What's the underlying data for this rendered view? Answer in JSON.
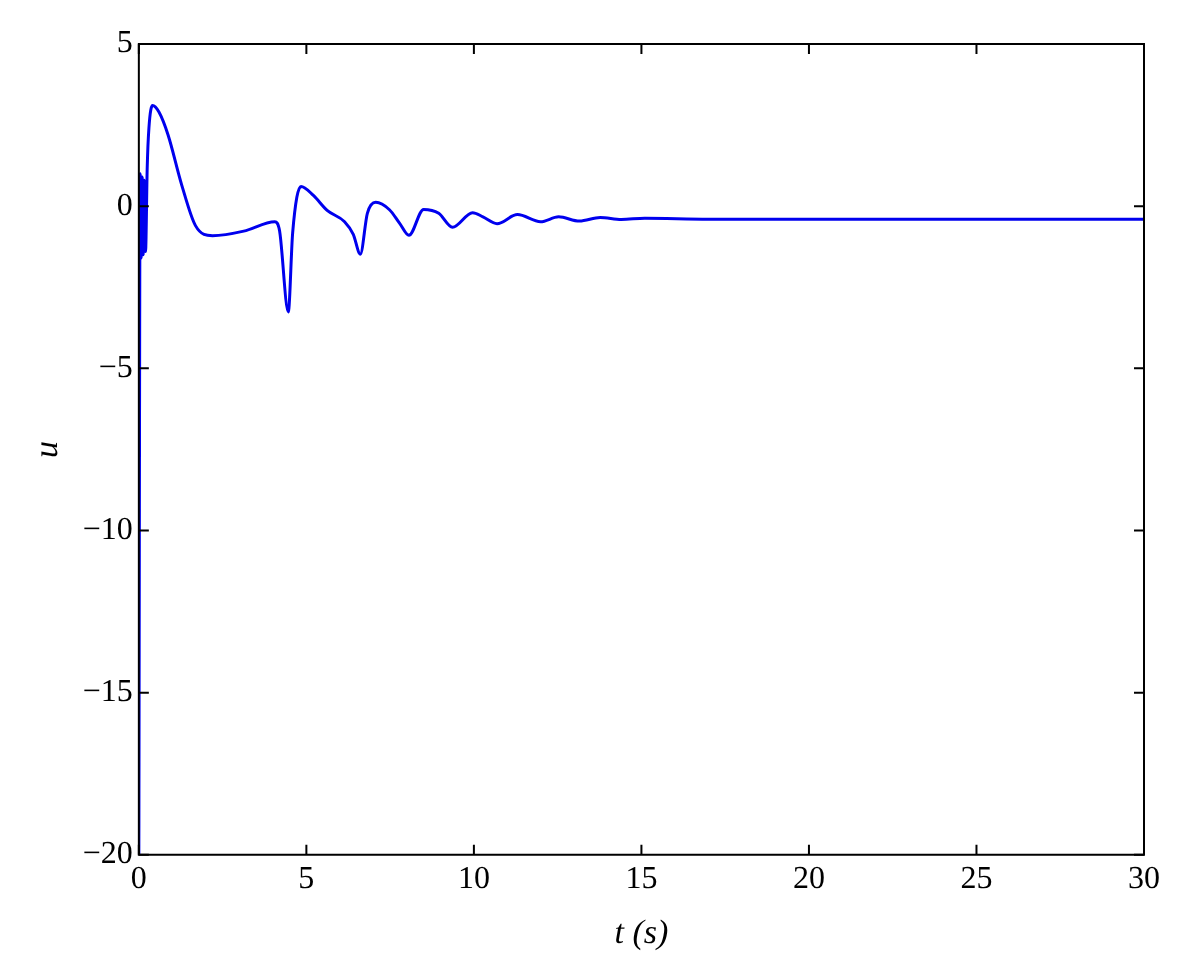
{
  "chart_data": {
    "type": "line",
    "xlabel": "t (s)",
    "ylabel": "u",
    "x": [
      0,
      0.04,
      0.07,
      0.1,
      0.13,
      0.16,
      0.2,
      0.25,
      0.3,
      0.41,
      0.6,
      0.87,
      1.28,
      1.69,
      2.2,
      3.13,
      4.06,
      4.2,
      4.46,
      4.59,
      4.84,
      5.21,
      5.62,
      6.14,
      6.4,
      6.61,
      6.82,
      7.07,
      7.48,
      7.79,
      8.06,
      8.5,
      8.95,
      9.36,
      9.96,
      10.27,
      10.69,
      11.3,
      11.99,
      12.53,
      13.15,
      13.77,
      14.4,
      15.1,
      17,
      20,
      25,
      30
    ],
    "series": [
      {
        "color": "#0000ee",
        "values": [
          -20,
          1,
          -1.6,
          0.9,
          -1.5,
          0.8,
          -1.4,
          1.2,
          2.4,
          3.1,
          2.9,
          2.2,
          0.65,
          -0.6,
          -0.91,
          -0.77,
          -0.48,
          -0.76,
          -3.26,
          -0.83,
          0.61,
          0.33,
          -0.13,
          -0.48,
          -0.87,
          -1.48,
          -0.22,
          0.12,
          -0.11,
          -0.54,
          -0.9,
          -0.1,
          -0.22,
          -0.65,
          -0.2,
          -0.33,
          -0.54,
          -0.26,
          -0.48,
          -0.33,
          -0.46,
          -0.35,
          -0.41,
          -0.37,
          -0.4,
          -0.4,
          -0.4,
          -0.4
        ]
      }
    ],
    "xlim": [
      0,
      30
    ],
    "xticks": [
      0,
      5,
      10,
      15,
      20,
      25,
      30
    ],
    "ylim": [
      -20,
      5
    ],
    "yticks": [
      {
        "value": -20,
        "label": "−20"
      },
      {
        "value": -15,
        "label": "−15"
      },
      {
        "value": -10,
        "label": "−10"
      },
      {
        "value": -5,
        "label": "−5"
      },
      0,
      5
    ],
    "grid": false,
    "legend": false,
    "marker": "none",
    "line_style": "solid"
  }
}
